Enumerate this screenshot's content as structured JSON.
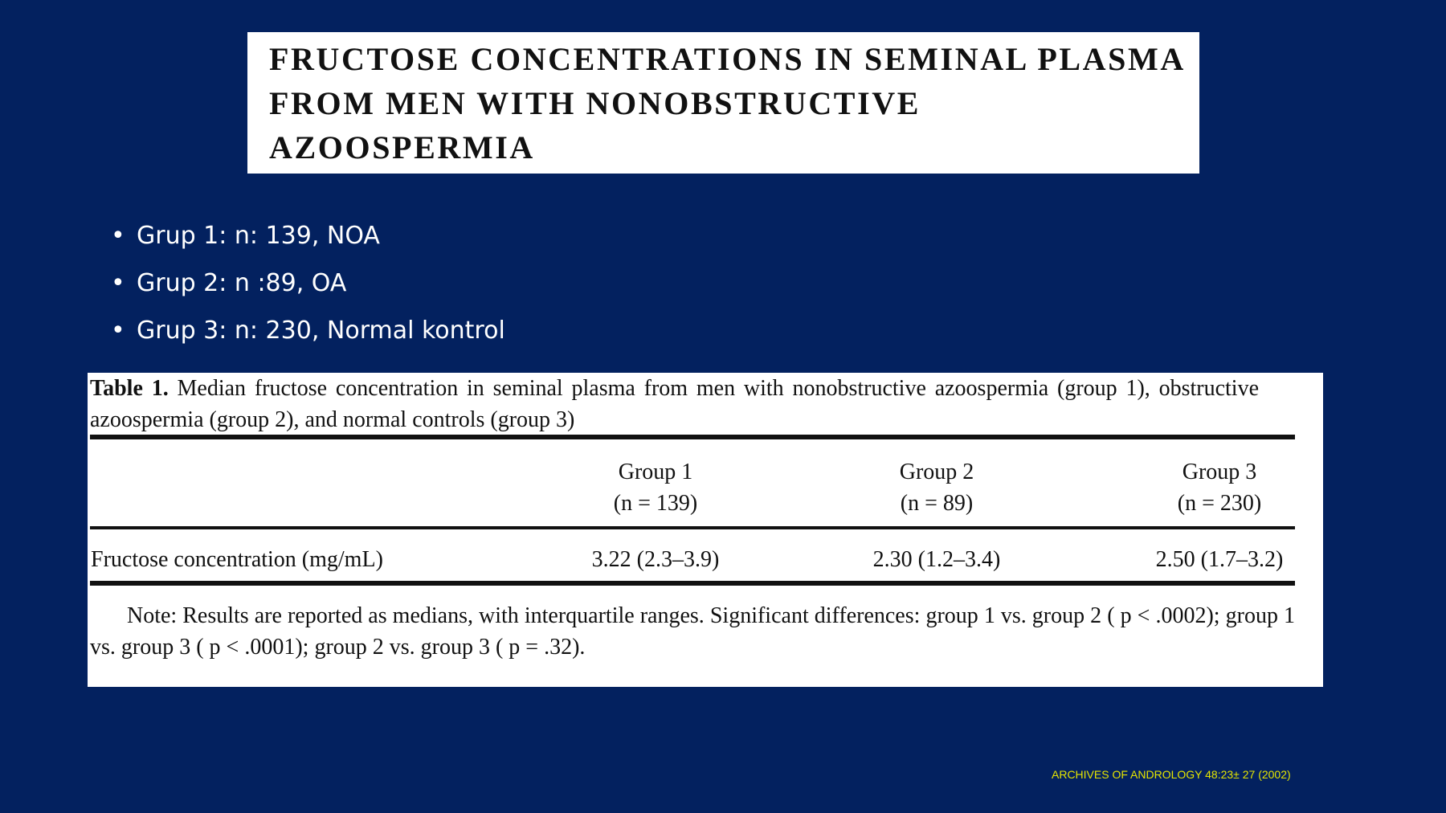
{
  "title": "FRUCTOSE CONCENTRATIONS IN SEMINAL PLASMA FROM MEN WITH NONOBSTRUCTIVE AZOOSPERMIA",
  "bullets": [
    "Grup 1: n: 139, NOA",
    "Grup 2: n :89, OA",
    "Grup 3: n: 230, Normal kontrol"
  ],
  "table": {
    "caption_label": "Table 1.",
    "caption_text": "Median fructose concentration in seminal plasma from men with nonobstructive azoospermia (group 1), obstructive azoospermia (group 2), and normal controls (group 3)",
    "columns": [
      {
        "name": "Group 1",
        "n": "(n = 139)"
      },
      {
        "name": "Group 2",
        "n": "(n = 89)"
      },
      {
        "name": "Group 3",
        "n": "(n = 230)"
      }
    ],
    "rows": [
      [
        "Fructose concentration (mg/mL)",
        "3.22 (2.3–3.9)",
        "2.30 (1.2–3.4)",
        "2.50 (1.7–3.2)"
      ]
    ],
    "note": "Note: Results are reported as medians, with interquartile ranges. Significant differences: group 1 vs. group 2 ( p < .0002); group 1 vs. group 3 ( p < .0001); group 2 vs. group 3 ( p = .32)."
  },
  "citation": "ARCHIVES OF ANDROLOGY 48:23± 27 (2002)"
}
